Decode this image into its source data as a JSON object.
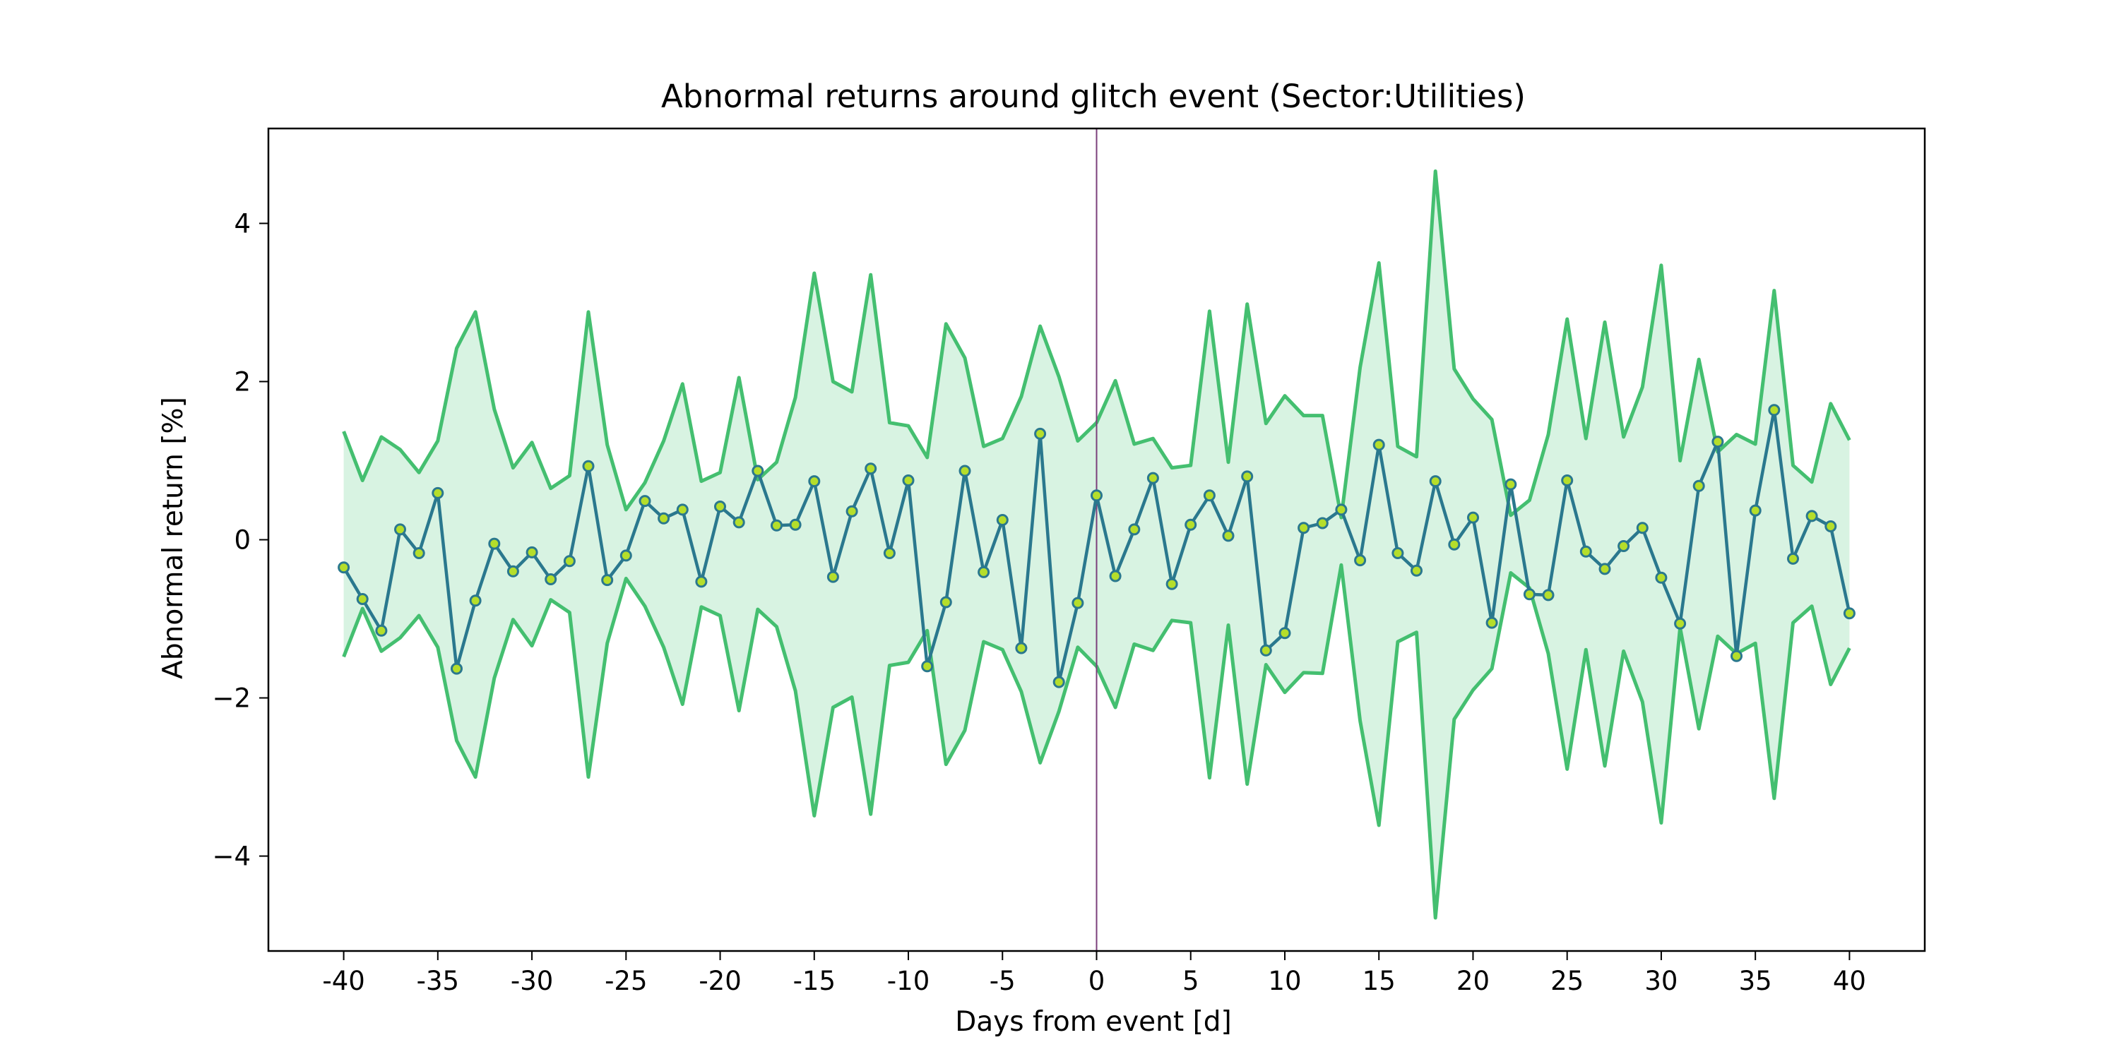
{
  "chart_data": {
    "type": "line",
    "title": "Abnormal returns around glitch event (Sector:Utilities)",
    "xlabel": "Days from event [d]",
    "ylabel": "Abnormal return [%]",
    "xlim": [
      -44,
      44
    ],
    "ylim": [
      -5.2,
      5.2
    ],
    "grid": false,
    "event_day": 0,
    "x_ticks": [
      -40,
      -35,
      -30,
      -25,
      -20,
      -15,
      -10,
      -5,
      0,
      5,
      10,
      15,
      20,
      25,
      30,
      35,
      40
    ],
    "y_ticks": [
      -4,
      -2,
      0,
      2,
      4
    ],
    "x": [
      -40,
      -39,
      -38,
      -37,
      -36,
      -35,
      -34,
      -33,
      -32,
      -31,
      -30,
      -29,
      -28,
      -27,
      -26,
      -25,
      -24,
      -23,
      -22,
      -21,
      -20,
      -19,
      -18,
      -17,
      -16,
      -15,
      -14,
      -13,
      -12,
      -11,
      -10,
      -9,
      -8,
      -7,
      -6,
      -5,
      -4,
      -3,
      -2,
      -1,
      0,
      1,
      2,
      3,
      4,
      5,
      6,
      7,
      8,
      9,
      10,
      11,
      12,
      13,
      14,
      15,
      16,
      17,
      18,
      19,
      20,
      21,
      22,
      23,
      24,
      25,
      26,
      27,
      28,
      29,
      30,
      31,
      32,
      33,
      34,
      35,
      36,
      37,
      38,
      39,
      40
    ],
    "series": [
      {
        "role": "mean",
        "values": [
          -0.35,
          -0.75,
          -1.15,
          0.13,
          -0.17,
          0.59,
          -1.63,
          -0.77,
          -0.05,
          -0.4,
          -0.16,
          -0.5,
          -0.27,
          0.93,
          -0.51,
          -0.2,
          0.49,
          0.27,
          0.38,
          -0.53,
          0.42,
          0.22,
          0.87,
          0.18,
          0.19,
          0.74,
          -0.47,
          0.36,
          0.9,
          -0.17,
          0.75,
          -1.6,
          -0.79,
          0.87,
          -0.41,
          0.25,
          -1.37,
          1.34,
          -1.8,
          -0.8,
          0.56,
          -0.46,
          0.13,
          0.78,
          -0.56,
          0.19,
          0.56,
          0.05,
          0.8,
          -1.4,
          -1.18,
          0.15,
          0.21,
          0.38,
          -0.26,
          1.2,
          -0.17,
          -0.39,
          0.74,
          -0.06,
          0.28,
          -1.05,
          0.7,
          -0.69,
          -0.7,
          0.75,
          -0.15,
          -0.37,
          -0.08,
          0.15,
          -0.48,
          -1.06,
          0.68,
          1.24,
          -1.47,
          0.37,
          1.64,
          -0.24,
          0.3,
          0.17,
          -0.93
        ]
      },
      {
        "role": "upper",
        "values": [
          1.37,
          0.75,
          1.3,
          1.14,
          0.85,
          1.25,
          2.42,
          2.88,
          1.65,
          0.91,
          1.23,
          0.65,
          0.81,
          2.88,
          1.2,
          0.38,
          0.72,
          1.25,
          1.97,
          0.74,
          0.85,
          2.05,
          0.76,
          0.98,
          1.8,
          3.37,
          2.0,
          1.87,
          3.35,
          1.48,
          1.44,
          1.04,
          2.73,
          2.3,
          1.18,
          1.28,
          1.81,
          2.7,
          2.06,
          1.25,
          1.48,
          2.01,
          1.21,
          1.28,
          0.91,
          0.94,
          2.89,
          0.98,
          2.98,
          1.47,
          1.82,
          1.57,
          1.57,
          0.28,
          2.18,
          3.5,
          1.18,
          1.05,
          4.66,
          2.16,
          1.78,
          1.52,
          0.31,
          0.5,
          1.33,
          2.79,
          1.28,
          2.75,
          1.3,
          1.93,
          3.47,
          1.0,
          2.28,
          1.11,
          1.33,
          1.21,
          3.15,
          0.94,
          0.73,
          1.72,
          1.26
        ]
      },
      {
        "role": "lower",
        "values": [
          -1.48,
          -0.87,
          -1.41,
          -1.24,
          -0.96,
          -1.36,
          -2.54,
          -3.0,
          -1.75,
          -1.01,
          -1.34,
          -0.76,
          -0.92,
          -3.0,
          -1.31,
          -0.49,
          -0.84,
          -1.36,
          -2.08,
          -0.85,
          -0.96,
          -2.16,
          -0.88,
          -1.1,
          -1.91,
          -3.49,
          -2.12,
          -1.99,
          -3.47,
          -1.59,
          -1.55,
          -1.15,
          -2.84,
          -2.41,
          -1.29,
          -1.39,
          -1.92,
          -2.82,
          -2.17,
          -1.36,
          -1.6,
          -2.12,
          -1.32,
          -1.4,
          -1.02,
          -1.05,
          -3.01,
          -1.08,
          -3.09,
          -1.58,
          -1.93,
          -1.68,
          -1.69,
          -0.32,
          -2.29,
          -3.61,
          -1.29,
          -1.17,
          -4.78,
          -2.27,
          -1.9,
          -1.63,
          -0.42,
          -0.61,
          -1.44,
          -2.9,
          -1.39,
          -2.86,
          -1.41,
          -2.05,
          -3.58,
          -1.11,
          -2.39,
          -1.22,
          -1.44,
          -1.31,
          -3.27,
          -1.05,
          -0.84,
          -1.83,
          -1.37
        ]
      }
    ],
    "colors": {
      "mean_line": "#2a788e",
      "marker_face": "#b5de2b",
      "band_lines": "#44bf70",
      "band_fill": "#d8f3e2",
      "event_line": "#7b3f7b",
      "axes": "#000000"
    }
  }
}
